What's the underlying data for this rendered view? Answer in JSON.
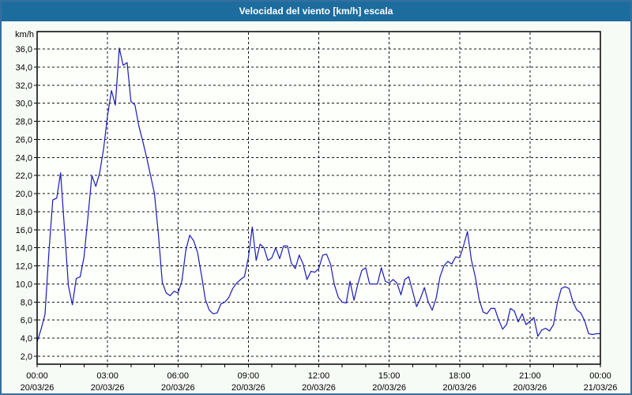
{
  "title": "Velocidad del viento [km/h] escala",
  "colors": {
    "titlebar_bg": "#1d6c9e",
    "titlebar_text": "#ffffff",
    "page_border": "#356f9f",
    "page_bg": "#f7fbf6",
    "plot_bg": "#fdfffb",
    "grid": "#141414",
    "axis": "#000000",
    "line": "#1a1aba"
  },
  "y_axis": {
    "unit_label": "km/h",
    "tick_labels": [
      "36,0",
      "34,0",
      "32,0",
      "30,0",
      "28,0",
      "26,0",
      "24,0",
      "22,0",
      "20,0",
      "18,0",
      "16,0",
      "14,0",
      "12,0",
      "10,0",
      "8,0",
      "6,0",
      "4,0",
      "2,0"
    ],
    "tick_values": [
      36,
      34,
      32,
      30,
      28,
      26,
      24,
      22,
      20,
      18,
      16,
      14,
      12,
      10,
      8,
      6,
      4,
      2
    ]
  },
  "x_axis": {
    "major_labels": [
      {
        "time": "00:00",
        "date": "20/03/26"
      },
      {
        "time": "03:00",
        "date": "20/03/26"
      },
      {
        "time": "06:00",
        "date": "20/03/26"
      },
      {
        "time": "09:00",
        "date": "20/03/26"
      },
      {
        "time": "12:00",
        "date": "20/03/26"
      },
      {
        "time": "15:00",
        "date": "20/03/26"
      },
      {
        "time": "18:00",
        "date": "20/03/26"
      },
      {
        "time": "21:00",
        "date": "20/03/26"
      },
      {
        "time": "00:00",
        "date": "21/03/26"
      }
    ],
    "major_step_hours": 3,
    "minor_step_hours": 1,
    "span_hours": 24
  },
  "chart_data": {
    "type": "line",
    "title": "Velocidad del viento [km/h] escala",
    "xlabel": "",
    "ylabel": "km/h",
    "ylim": [
      2,
      36
    ],
    "x_start": "20/03/26 00:00",
    "x_end": "21/03/26 00:00",
    "sample_interval_minutes": 10,
    "grid": "dashed, horizontal every 2 km/h, vertical every 3 h",
    "legend": "none",
    "series_name": "Velocidad del viento",
    "values": [
      3.6,
      5.0,
      6.6,
      13.5,
      19.3,
      19.5,
      22.3,
      16.0,
      9.8,
      7.7,
      10.6,
      10.8,
      13.0,
      17.5,
      22.0,
      20.8,
      22.3,
      25.0,
      28.6,
      31.4,
      29.8,
      36.1,
      34.2,
      34.5,
      30.2,
      29.8,
      27.5,
      25.8,
      24.0,
      22.0,
      20.0,
      15.5,
      10.2,
      9.0,
      8.7,
      9.2,
      9.0,
      10.3,
      13.7,
      15.4,
      14.8,
      13.5,
      11.0,
      8.3,
      7.1,
      6.7,
      6.8,
      7.8,
      8.0,
      8.5,
      9.5,
      10.1,
      10.5,
      10.8,
      12.9,
      16.3,
      12.6,
      14.4,
      14.0,
      12.6,
      12.9,
      14.0,
      12.8,
      14.2,
      14.2,
      12.3,
      11.7,
      13.2,
      12.2,
      10.5,
      11.4,
      11.3,
      11.7,
      13.2,
      13.3,
      12.2,
      9.9,
      8.5,
      8.0,
      7.9,
      10.3,
      8.2,
      10.0,
      11.5,
      11.8,
      10.0,
      10.0,
      10.0,
      11.8,
      10.3,
      10.1,
      10.5,
      10.1,
      8.8,
      10.5,
      10.8,
      9.2,
      7.5,
      8.4,
      9.6,
      8.0,
      7.1,
      8.4,
      10.8,
      12.0,
      12.5,
      12.2,
      13.0,
      12.9,
      14.2,
      15.8,
      12.7,
      10.8,
      8.3,
      6.9,
      6.7,
      7.3,
      7.3,
      6.0,
      5.0,
      5.5,
      7.3,
      7.0,
      5.8,
      6.7,
      5.5,
      5.9,
      6.3,
      4.2,
      4.9,
      5.1,
      4.8,
      5.5,
      7.9,
      9.5,
      9.7,
      9.5,
      8.0,
      7.1,
      6.8,
      5.9,
      4.5,
      4.4,
      4.5,
      4.5
    ]
  }
}
